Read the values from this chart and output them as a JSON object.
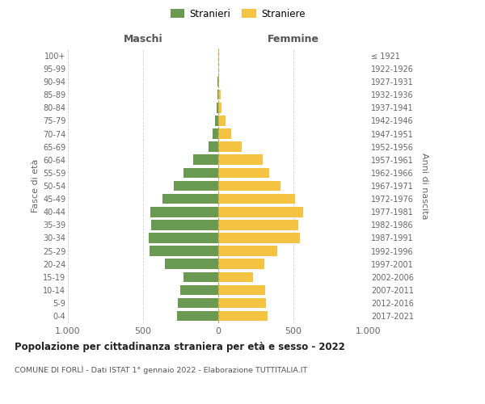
{
  "age_groups": [
    "0-4",
    "5-9",
    "10-14",
    "15-19",
    "20-24",
    "25-29",
    "30-34",
    "35-39",
    "40-44",
    "45-49",
    "50-54",
    "55-59",
    "60-64",
    "65-69",
    "70-74",
    "75-79",
    "80-84",
    "85-89",
    "90-94",
    "95-99",
    "100+"
  ],
  "birth_years": [
    "2017-2021",
    "2012-2016",
    "2007-2011",
    "2002-2006",
    "1997-2001",
    "1992-1996",
    "1987-1991",
    "1982-1986",
    "1977-1981",
    "1972-1976",
    "1967-1971",
    "1962-1966",
    "1957-1961",
    "1952-1956",
    "1947-1951",
    "1942-1946",
    "1937-1941",
    "1932-1936",
    "1927-1931",
    "1922-1926",
    "≤ 1921"
  ],
  "maschi": [
    275,
    270,
    255,
    230,
    355,
    455,
    460,
    445,
    450,
    370,
    295,
    230,
    165,
    65,
    35,
    20,
    12,
    8,
    3,
    1,
    2
  ],
  "femmine": [
    330,
    315,
    310,
    230,
    305,
    395,
    545,
    530,
    565,
    510,
    415,
    340,
    295,
    155,
    85,
    50,
    22,
    18,
    5,
    2,
    3
  ],
  "maschi_color": "#6a9a52",
  "femmine_color": "#f5c342",
  "bg_color": "#ffffff",
  "grid_color": "#cccccc",
  "title1": "Popolazione per cittadinanza straniera per età e sesso - 2022",
  "title2": "COMUNE DI FORLÌ - Dati ISTAT 1° gennaio 2022 - Elaborazione TUTTITALIA.IT",
  "legend_maschi": "Stranieri",
  "legend_femmine": "Straniere",
  "xlabel_left": "Maschi",
  "xlabel_right": "Femmine",
  "ylabel_left": "Fasce di età",
  "ylabel_right": "Anni di nascita",
  "xlim": 1000
}
